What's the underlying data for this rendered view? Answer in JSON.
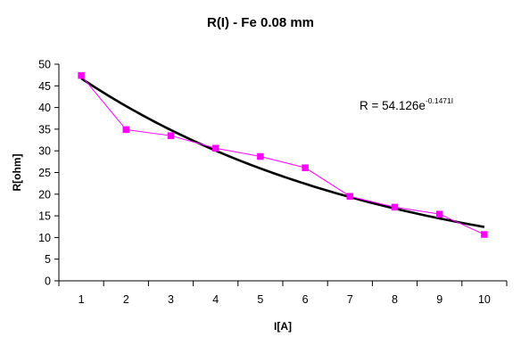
{
  "chart_data": {
    "type": "line",
    "title": "R(I) - Fe 0.08 mm",
    "xlabel": "I[A]",
    "ylabel": "R[ohm]",
    "categories": [
      "1",
      "2",
      "3",
      "4",
      "5",
      "6",
      "7",
      "8",
      "9",
      "10"
    ],
    "ylim": [
      0,
      50
    ],
    "yticks": [
      0,
      5,
      10,
      15,
      20,
      25,
      30,
      35,
      40,
      45,
      50
    ],
    "grid": false,
    "series": [
      {
        "values": [
          47.4,
          34.9,
          33.5,
          30.6,
          28.7,
          26.1,
          19.5,
          17.0,
          15.4,
          10.7
        ],
        "color": "#ff00ff",
        "marker": "square"
      }
    ],
    "trendline": {
      "type": "exponential",
      "coefficient": 54.126,
      "exponent": -0.1471,
      "color": "#000000"
    },
    "annotation": {
      "base": "R = 54.126e",
      "sup": "-0.1471I"
    }
  }
}
